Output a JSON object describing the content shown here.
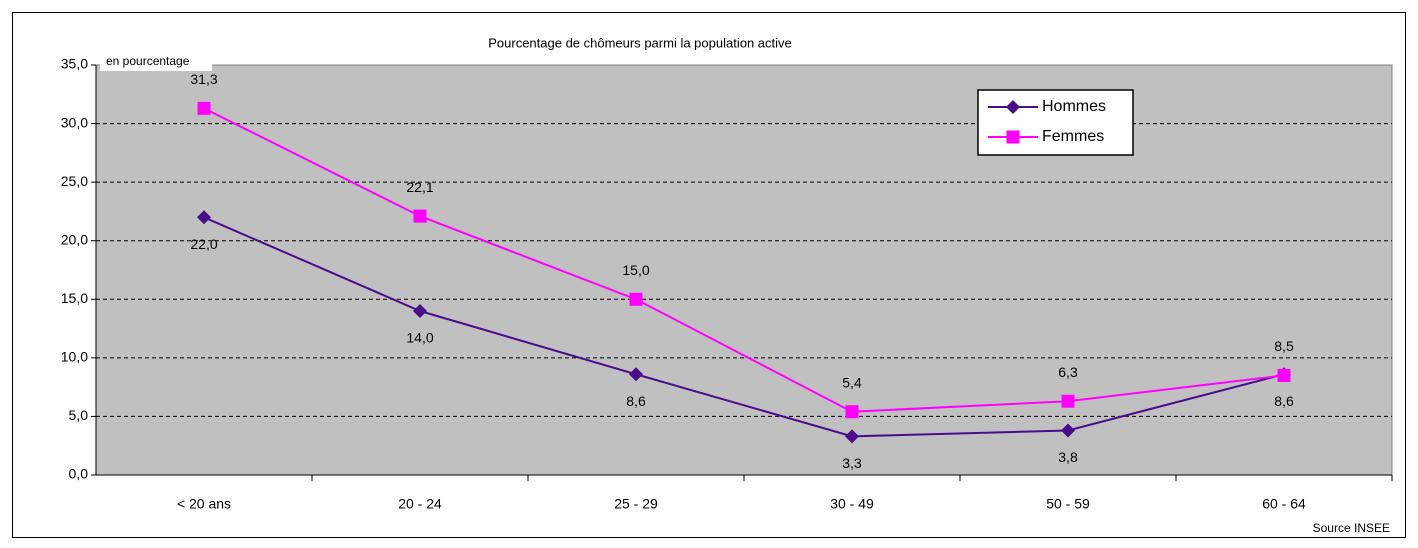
{
  "chart_data": {
    "type": "line",
    "title": "Pourcentage de chômeurs parmi la population active",
    "y_label": "en pourcentage",
    "source": "Source INSEE",
    "categories": [
      "< 20 ans",
      "20 - 24",
      "25 - 29",
      "30 - 49",
      "50 - 59",
      "60 - 64"
    ],
    "series": [
      {
        "name": "Hommes",
        "color": "#4b0c8c",
        "marker": "diamond",
        "values": [
          22.0,
          14.0,
          8.6,
          3.3,
          3.8,
          8.6
        ],
        "value_labels": [
          "22,0",
          "14,0",
          "8,6",
          "3,3",
          "3,8",
          "8,6"
        ]
      },
      {
        "name": "Femmes",
        "color": "#ff00ff",
        "marker": "square",
        "values": [
          31.3,
          22.1,
          15.0,
          5.4,
          6.3,
          8.5
        ],
        "value_labels": [
          "31,3",
          "22,1",
          "15,0",
          "5,4",
          "6,3",
          "8,5"
        ]
      }
    ],
    "ylim": [
      0,
      35
    ],
    "yticks": [
      {
        "value": 0,
        "label": "0,0"
      },
      {
        "value": 5,
        "label": "5,0"
      },
      {
        "value": 10,
        "label": "10,0"
      },
      {
        "value": 15,
        "label": "15,0"
      },
      {
        "value": 20,
        "label": "20,0"
      },
      {
        "value": 25,
        "label": "25,0"
      },
      {
        "value": 30,
        "label": "30,0"
      },
      {
        "value": 35,
        "label": "35,0"
      }
    ],
    "grid": true,
    "background": "#c0c0c0",
    "legend": "top-right"
  }
}
